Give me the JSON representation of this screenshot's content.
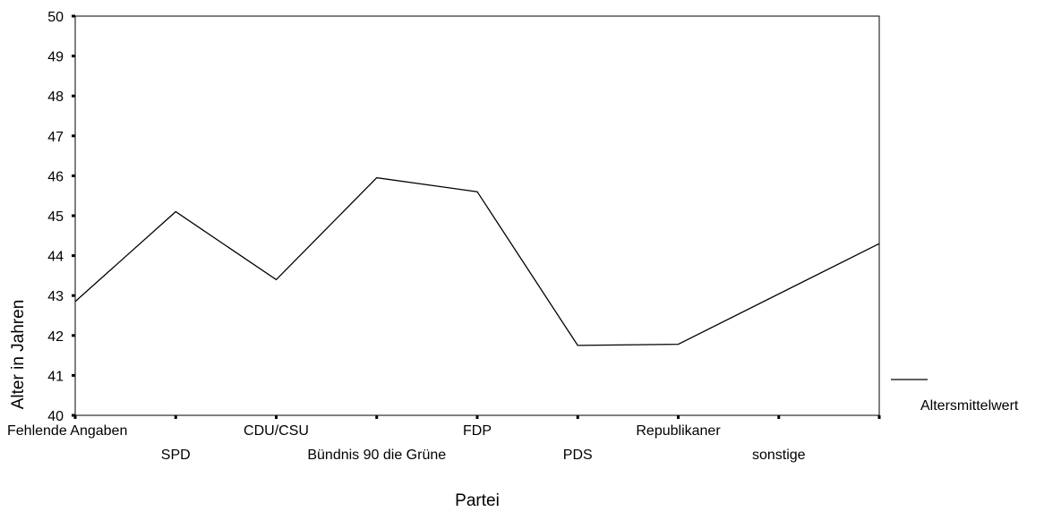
{
  "chart_data": {
    "type": "line",
    "title": "",
    "xlabel": "Partei",
    "ylabel": "Alter in Jahren",
    "ylim": [
      40,
      50
    ],
    "yticks": [
      "40",
      "41",
      "42",
      "43",
      "44",
      "45",
      "46",
      "47",
      "48",
      "49",
      "50"
    ],
    "grid": false,
    "legend_position": "right",
    "categories": [
      "Fehlende Angaben",
      "SPD",
      "CDU/CSU",
      "Bündnis 90 die Grüne",
      "FDP",
      "PDS",
      "Republikaner",
      "sonstige"
    ],
    "series": [
      {
        "name": "Altersmittelwert",
        "color": "#000000",
        "values": [
          42.85,
          45.1,
          43.4,
          45.95,
          45.6,
          41.75,
          41.78,
          44.3
        ]
      }
    ]
  }
}
